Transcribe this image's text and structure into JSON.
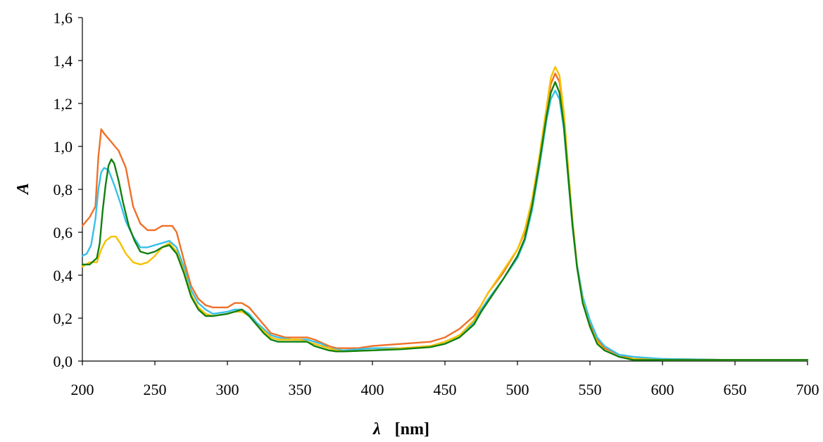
{
  "chart_data": {
    "type": "line",
    "title": "",
    "xlabel_symbol": "λ",
    "xlabel_unit": "[nm]",
    "ylabel": "A",
    "xlim": [
      200,
      700
    ],
    "ylim": [
      0.0,
      1.6
    ],
    "x_ticks": [
      200,
      250,
      300,
      350,
      400,
      450,
      500,
      550,
      600,
      650,
      700
    ],
    "x_tick_labels": [
      "200",
      "250",
      "300",
      "350",
      "400",
      "450",
      "500",
      "550",
      "600",
      "650",
      "700"
    ],
    "y_ticks": [
      0.0,
      0.2,
      0.4,
      0.6,
      0.8,
      1.0,
      1.2,
      1.4,
      1.6
    ],
    "y_tick_labels": [
      "0,0",
      "0,2",
      "0,4",
      "0,6",
      "0,8",
      "1,0",
      "1,2",
      "1,4",
      "1,6"
    ],
    "grid": false,
    "legend": "none",
    "series": [
      {
        "color": "#F07028",
        "points": [
          [
            200,
            0.63
          ],
          [
            205,
            0.67
          ],
          [
            209,
            0.72
          ],
          [
            211,
            0.95
          ],
          [
            213,
            1.08
          ],
          [
            215,
            1.06
          ],
          [
            220,
            1.02
          ],
          [
            225,
            0.98
          ],
          [
            230,
            0.9
          ],
          [
            235,
            0.72
          ],
          [
            240,
            0.64
          ],
          [
            245,
            0.61
          ],
          [
            250,
            0.61
          ],
          [
            255,
            0.63
          ],
          [
            262,
            0.63
          ],
          [
            265,
            0.6
          ],
          [
            270,
            0.47
          ],
          [
            275,
            0.35
          ],
          [
            280,
            0.29
          ],
          [
            285,
            0.26
          ],
          [
            290,
            0.25
          ],
          [
            300,
            0.25
          ],
          [
            305,
            0.27
          ],
          [
            310,
            0.27
          ],
          [
            315,
            0.25
          ],
          [
            320,
            0.21
          ],
          [
            325,
            0.17
          ],
          [
            330,
            0.13
          ],
          [
            335,
            0.12
          ],
          [
            340,
            0.11
          ],
          [
            350,
            0.11
          ],
          [
            355,
            0.11
          ],
          [
            360,
            0.1
          ],
          [
            370,
            0.07
          ],
          [
            375,
            0.06
          ],
          [
            380,
            0.06
          ],
          [
            390,
            0.06
          ],
          [
            400,
            0.07
          ],
          [
            420,
            0.08
          ],
          [
            440,
            0.09
          ],
          [
            450,
            0.11
          ],
          [
            460,
            0.15
          ],
          [
            470,
            0.21
          ],
          [
            475,
            0.26
          ],
          [
            480,
            0.32
          ],
          [
            490,
            0.41
          ],
          [
            500,
            0.52
          ],
          [
            505,
            0.6
          ],
          [
            510,
            0.73
          ],
          [
            515,
            0.93
          ],
          [
            520,
            1.16
          ],
          [
            523,
            1.29
          ],
          [
            526,
            1.34
          ],
          [
            529,
            1.3
          ],
          [
            532,
            1.15
          ],
          [
            535,
            0.88
          ],
          [
            538,
            0.65
          ],
          [
            541,
            0.45
          ],
          [
            545,
            0.29
          ],
          [
            550,
            0.17
          ],
          [
            555,
            0.1
          ],
          [
            560,
            0.06
          ],
          [
            570,
            0.03
          ],
          [
            580,
            0.01
          ],
          [
            600,
            0.01
          ],
          [
            650,
            0.005
          ],
          [
            700,
            0.005
          ]
        ]
      },
      {
        "color": "#38C0E8",
        "points": [
          [
            200,
            0.49
          ],
          [
            203,
            0.5
          ],
          [
            206,
            0.54
          ],
          [
            209,
            0.66
          ],
          [
            211,
            0.8
          ],
          [
            213,
            0.88
          ],
          [
            215,
            0.9
          ],
          [
            218,
            0.89
          ],
          [
            222,
            0.82
          ],
          [
            226,
            0.74
          ],
          [
            230,
            0.65
          ],
          [
            235,
            0.58
          ],
          [
            240,
            0.53
          ],
          [
            245,
            0.53
          ],
          [
            250,
            0.54
          ],
          [
            255,
            0.55
          ],
          [
            260,
            0.56
          ],
          [
            265,
            0.53
          ],
          [
            270,
            0.44
          ],
          [
            275,
            0.33
          ],
          [
            280,
            0.27
          ],
          [
            285,
            0.24
          ],
          [
            290,
            0.22
          ],
          [
            300,
            0.23
          ],
          [
            305,
            0.24
          ],
          [
            310,
            0.24
          ],
          [
            315,
            0.22
          ],
          [
            320,
            0.18
          ],
          [
            325,
            0.15
          ],
          [
            330,
            0.12
          ],
          [
            335,
            0.11
          ],
          [
            345,
            0.1
          ],
          [
            355,
            0.1
          ],
          [
            360,
            0.09
          ],
          [
            365,
            0.08
          ],
          [
            370,
            0.06
          ],
          [
            380,
            0.05
          ],
          [
            400,
            0.06
          ],
          [
            420,
            0.06
          ],
          [
            440,
            0.07
          ],
          [
            450,
            0.09
          ],
          [
            460,
            0.12
          ],
          [
            470,
            0.18
          ],
          [
            475,
            0.24
          ],
          [
            480,
            0.29
          ],
          [
            490,
            0.38
          ],
          [
            500,
            0.48
          ],
          [
            505,
            0.56
          ],
          [
            510,
            0.7
          ],
          [
            515,
            0.9
          ],
          [
            520,
            1.12
          ],
          [
            523,
            1.22
          ],
          [
            526,
            1.26
          ],
          [
            529,
            1.22
          ],
          [
            532,
            1.08
          ],
          [
            535,
            0.85
          ],
          [
            538,
            0.62
          ],
          [
            541,
            0.45
          ],
          [
            545,
            0.3
          ],
          [
            550,
            0.19
          ],
          [
            555,
            0.11
          ],
          [
            560,
            0.07
          ],
          [
            570,
            0.03
          ],
          [
            580,
            0.02
          ],
          [
            600,
            0.01
          ],
          [
            650,
            0.005
          ],
          [
            700,
            0.005
          ]
        ]
      },
      {
        "color": "#F8C000",
        "points": [
          [
            200,
            0.44
          ],
          [
            205,
            0.46
          ],
          [
            210,
            0.46
          ],
          [
            213,
            0.52
          ],
          [
            216,
            0.56
          ],
          [
            220,
            0.58
          ],
          [
            223,
            0.58
          ],
          [
            226,
            0.55
          ],
          [
            230,
            0.5
          ],
          [
            235,
            0.46
          ],
          [
            240,
            0.45
          ],
          [
            245,
            0.46
          ],
          [
            250,
            0.49
          ],
          [
            255,
            0.53
          ],
          [
            260,
            0.55
          ],
          [
            265,
            0.51
          ],
          [
            270,
            0.42
          ],
          [
            275,
            0.31
          ],
          [
            280,
            0.25
          ],
          [
            285,
            0.22
          ],
          [
            290,
            0.21
          ],
          [
            300,
            0.22
          ],
          [
            305,
            0.23
          ],
          [
            310,
            0.23
          ],
          [
            315,
            0.21
          ],
          [
            320,
            0.17
          ],
          [
            325,
            0.14
          ],
          [
            330,
            0.11
          ],
          [
            335,
            0.1
          ],
          [
            350,
            0.1
          ],
          [
            355,
            0.09
          ],
          [
            360,
            0.08
          ],
          [
            370,
            0.06
          ],
          [
            375,
            0.05
          ],
          [
            380,
            0.045
          ],
          [
            400,
            0.05
          ],
          [
            420,
            0.06
          ],
          [
            440,
            0.07
          ],
          [
            450,
            0.09
          ],
          [
            460,
            0.12
          ],
          [
            470,
            0.19
          ],
          [
            475,
            0.26
          ],
          [
            480,
            0.32
          ],
          [
            490,
            0.42
          ],
          [
            500,
            0.52
          ],
          [
            505,
            0.61
          ],
          [
            510,
            0.75
          ],
          [
            515,
            0.95
          ],
          [
            520,
            1.18
          ],
          [
            523,
            1.32
          ],
          [
            526,
            1.37
          ],
          [
            529,
            1.33
          ],
          [
            532,
            1.16
          ],
          [
            535,
            0.9
          ],
          [
            538,
            0.65
          ],
          [
            541,
            0.44
          ],
          [
            545,
            0.28
          ],
          [
            550,
            0.16
          ],
          [
            555,
            0.09
          ],
          [
            560,
            0.05
          ],
          [
            570,
            0.02
          ],
          [
            580,
            0.01
          ],
          [
            600,
            0.005
          ],
          [
            650,
            0.005
          ],
          [
            700,
            0.005
          ]
        ]
      },
      {
        "color": "#108010",
        "points": [
          [
            200,
            0.45
          ],
          [
            205,
            0.45
          ],
          [
            210,
            0.48
          ],
          [
            212,
            0.55
          ],
          [
            214,
            0.7
          ],
          [
            216,
            0.82
          ],
          [
            218,
            0.91
          ],
          [
            220,
            0.94
          ],
          [
            222,
            0.92
          ],
          [
            225,
            0.84
          ],
          [
            228,
            0.74
          ],
          [
            232,
            0.63
          ],
          [
            236,
            0.56
          ],
          [
            240,
            0.51
          ],
          [
            245,
            0.5
          ],
          [
            250,
            0.51
          ],
          [
            255,
            0.53
          ],
          [
            260,
            0.54
          ],
          [
            265,
            0.5
          ],
          [
            270,
            0.41
          ],
          [
            275,
            0.3
          ],
          [
            280,
            0.24
          ],
          [
            285,
            0.21
          ],
          [
            290,
            0.21
          ],
          [
            300,
            0.22
          ],
          [
            305,
            0.23
          ],
          [
            310,
            0.24
          ],
          [
            315,
            0.21
          ],
          [
            320,
            0.17
          ],
          [
            325,
            0.13
          ],
          [
            330,
            0.1
          ],
          [
            335,
            0.09
          ],
          [
            350,
            0.09
          ],
          [
            355,
            0.09
          ],
          [
            360,
            0.07
          ],
          [
            370,
            0.05
          ],
          [
            375,
            0.045
          ],
          [
            380,
            0.045
          ],
          [
            400,
            0.05
          ],
          [
            420,
            0.055
          ],
          [
            440,
            0.065
          ],
          [
            450,
            0.08
          ],
          [
            460,
            0.11
          ],
          [
            470,
            0.17
          ],
          [
            475,
            0.23
          ],
          [
            480,
            0.28
          ],
          [
            490,
            0.38
          ],
          [
            500,
            0.49
          ],
          [
            505,
            0.57
          ],
          [
            510,
            0.72
          ],
          [
            515,
            0.92
          ],
          [
            520,
            1.14
          ],
          [
            523,
            1.25
          ],
          [
            526,
            1.3
          ],
          [
            529,
            1.25
          ],
          [
            532,
            1.1
          ],
          [
            535,
            0.86
          ],
          [
            538,
            0.63
          ],
          [
            541,
            0.44
          ],
          [
            545,
            0.27
          ],
          [
            550,
            0.16
          ],
          [
            555,
            0.08
          ],
          [
            560,
            0.05
          ],
          [
            570,
            0.02
          ],
          [
            580,
            0.005
          ],
          [
            600,
            0.005
          ],
          [
            650,
            0.005
          ],
          [
            700,
            0.005
          ]
        ]
      }
    ]
  }
}
